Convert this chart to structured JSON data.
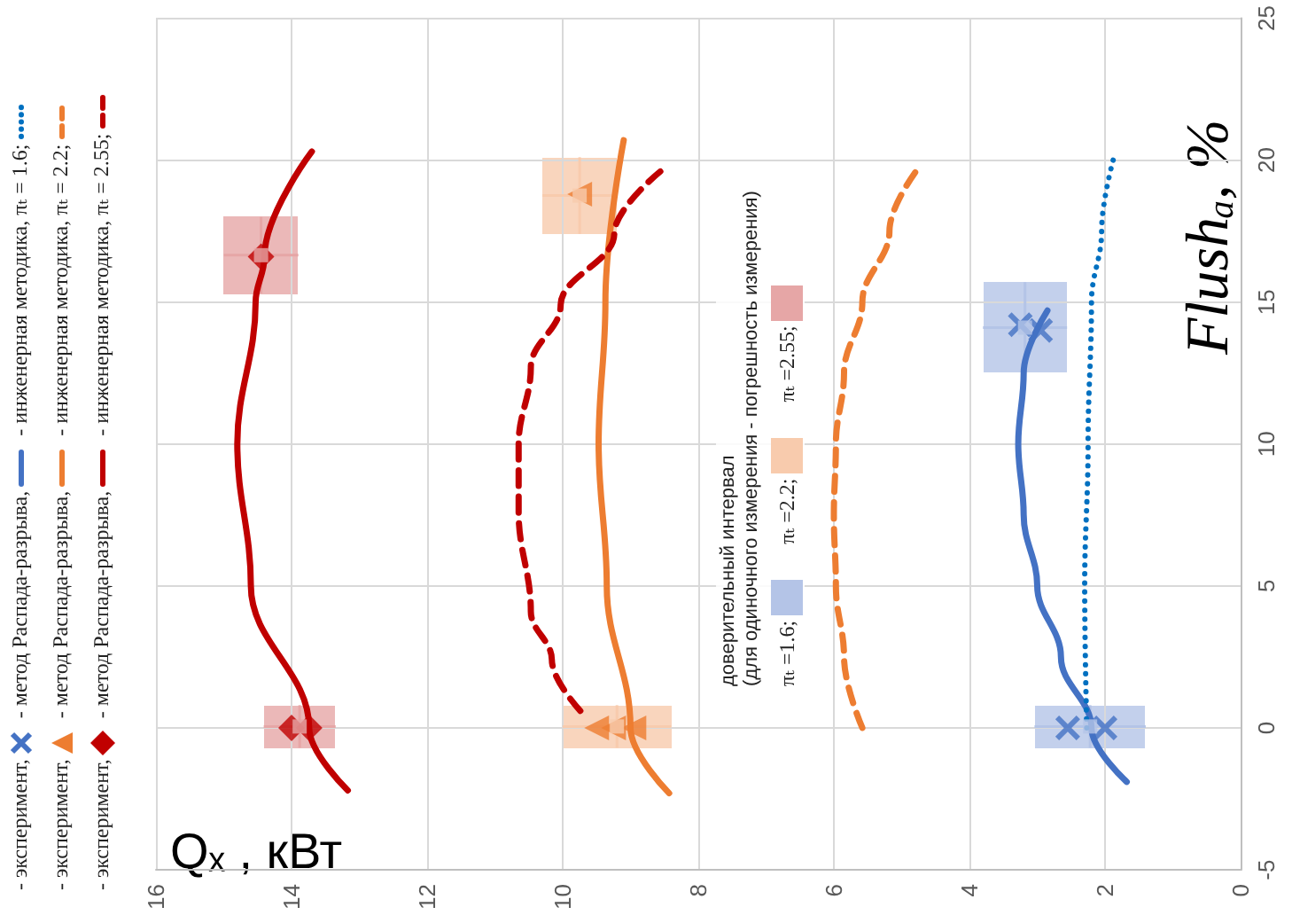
{
  "chart_data": {
    "type": "line",
    "xlabel": "Qₓ , кВт",
    "ylabel": "Flushₐ, %",
    "legend_title": "доверительный интервал\n(для одиночного измерения - погрешность измерения)",
    "xlim": [
      16,
      0
    ],
    "xticks": [
      0,
      2,
      4,
      6,
      8,
      10,
      12,
      14,
      16
    ],
    "ylim": [
      -5,
      25
    ],
    "yticks": [
      -5,
      0,
      5,
      10,
      15,
      20,
      25
    ],
    "grid": true,
    "legend": "left",
    "series": [
      {
        "name": "- эксперимент,",
        "type": "scatter",
        "marker": "cross",
        "color": "#4472c4",
        "x": [
          2.0,
          2.55,
          2.95,
          3.25
        ],
        "values": [
          0,
          0,
          14,
          14.2
        ]
      },
      {
        "name": "- метод Распада-разрыва,",
        "marker": "none",
        "line_style": "solid",
        "color": "#4472c4",
        "x": [
          1.68,
          2.2,
          2.65,
          3.0,
          3.2,
          3.28,
          3.2,
          2.85
        ],
        "values": [
          -1.9,
          0,
          2.5,
          5,
          7.5,
          10,
          12.5,
          14.7
        ]
      },
      {
        "name": "- инженерная методика,  πₜ = 1.6;",
        "marker": "none",
        "line_style": "dotted",
        "color": "#0070c0",
        "x": [
          2.27,
          2.3,
          2.25,
          2.2,
          2.05,
          1.88
        ],
        "values": [
          0,
          5,
          10,
          15,
          17.5,
          20
        ]
      },
      {
        "name": "- эксперимент,",
        "type": "scatter",
        "marker": "triangle",
        "color": "#ed7d31",
        "x": [
          9.5,
          9.25,
          8.95,
          9.75
        ],
        "values": [
          0,
          0,
          0,
          18.8
        ]
      },
      {
        "name": "- метод Распада-разрыва,",
        "marker": "none",
        "line_style": "solid",
        "color": "#ed7d31",
        "x": [
          8.43,
          9.0,
          9.35,
          9.47,
          9.37,
          9.1
        ],
        "values": [
          -2.3,
          0,
          5,
          10,
          15,
          20.7
        ]
      },
      {
        "name": "- инженерная методика,  πₜ = 2.2;",
        "marker": "none",
        "line_style": "dashed",
        "color": "#ed7d31",
        "x": [
          5.58,
          5.85,
          5.97,
          6.0,
          5.97,
          5.85,
          5.58,
          5.18,
          4.76
        ],
        "values": [
          0,
          2.5,
          5,
          7.5,
          10,
          12.5,
          15,
          17.5,
          19.7
        ]
      },
      {
        "name": "- эксперимент,",
        "type": "scatter",
        "marker": "diamond",
        "color": "#c00000",
        "x": [
          14.0,
          13.74,
          14.45
        ],
        "values": [
          0,
          0,
          16.6
        ]
      },
      {
        "name": "- метод Распада-разрыва,",
        "marker": "none",
        "line_style": "solid",
        "color": "#c00000",
        "x": [
          13.17,
          13.74,
          14.6,
          14.8,
          14.53,
          14.4,
          13.7
        ],
        "values": [
          -2.2,
          0,
          5,
          10,
          15,
          16.6,
          20.3
        ]
      },
      {
        "name": "- инженерная методика,  πₜ = 2.55;",
        "marker": "none",
        "line_style": "dashed",
        "color": "#c00000",
        "x": [
          9.74,
          10.16,
          10.47,
          10.65,
          10.65,
          10.47,
          10.03,
          9.24,
          8.56
        ],
        "values": [
          0.6,
          2.4,
          4.1,
          7.6,
          10,
          12.7,
          14.9,
          17.4,
          19.6
        ]
      },
      {
        "name": "πₜ =1.6;",
        "type": "scatter",
        "marker": "square",
        "color": "#b4c4e7",
        "x": [
          2.22,
          3.18
        ],
        "values": [
          0.05,
          14.1
        ],
        "xerrors": [
          0.82,
          0.62
        ],
        "errors": [
          0.75,
          1.6
        ]
      },
      {
        "name": "πₜ =2.2;",
        "type": "scatter",
        "marker": "square",
        "color": "#f8cbad",
        "x": [
          9.2,
          9.75
        ],
        "values": [
          0.05,
          18.75
        ],
        "xerrors": [
          0.8,
          0.55
        ],
        "errors": [
          0.75,
          1.35
        ]
      },
      {
        "name": "πₜ =2.55;",
        "type": "scatter",
        "marker": "square",
        "color": "#e6a6a6",
        "x": [
          13.88,
          14.45
        ],
        "values": [
          0.05,
          16.65
        ],
        "xerrors": [
          0.53,
          0.55
        ],
        "errors": [
          0.75,
          1.35
        ]
      }
    ]
  }
}
